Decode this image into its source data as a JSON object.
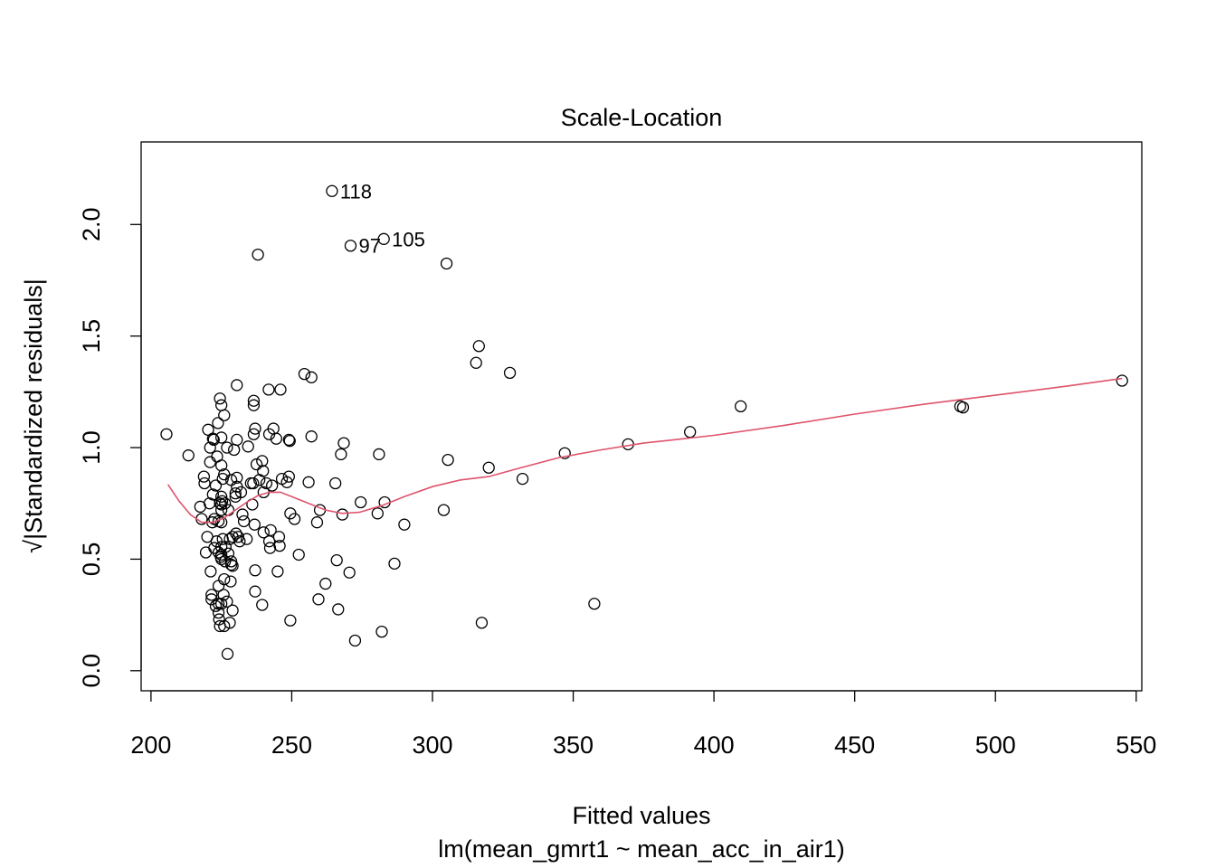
{
  "chart_data": {
    "type": "scatter",
    "title": "Scale-Location",
    "xlabel": "Fitted values",
    "subtitle": "lm(mean_gmrt1 ~ mean_acc_in_air1)",
    "ylabel": "√|Standardized residuals|",
    "xlim": [
      196.5,
      552
    ],
    "ylim": [
      -0.09,
      2.37
    ],
    "x_ticks": [
      200,
      250,
      300,
      350,
      400,
      450,
      500,
      550
    ],
    "x_tick_labels": [
      "200",
      "250",
      "300",
      "350",
      "400",
      "450",
      "500",
      "550"
    ],
    "y_ticks": [
      0.0,
      0.5,
      1.0,
      1.5,
      2.0
    ],
    "y_tick_labels": [
      "0.0",
      "0.5",
      "1.0",
      "1.5",
      "2.0"
    ],
    "grid": false,
    "point_color": "#000000",
    "smoother_color": "#DF536B",
    "labeled_points": [
      {
        "label": "118",
        "x": 264.3,
        "y": 2.15
      },
      {
        "label": "97",
        "x": 270.9,
        "y": 1.905
      },
      {
        "label": "105",
        "x": 282.7,
        "y": 1.935
      }
    ],
    "points": [
      [
        205.5,
        1.06
      ],
      [
        213.3,
        0.965
      ],
      [
        217.5,
        0.735
      ],
      [
        218.0,
        0.68
      ],
      [
        218.8,
        0.87
      ],
      [
        219.0,
        0.84
      ],
      [
        219.5,
        0.53
      ],
      [
        220.0,
        0.6
      ],
      [
        220.3,
        1.08
      ],
      [
        220.8,
        0.75
      ],
      [
        221.0,
        0.935
      ],
      [
        221.0,
        1.0
      ],
      [
        221.2,
        0.445
      ],
      [
        221.5,
        0.34
      ],
      [
        221.5,
        0.32
      ],
      [
        221.8,
        0.665
      ],
      [
        222.0,
        0.79
      ],
      [
        222.0,
        1.04
      ],
      [
        222.3,
        1.035
      ],
      [
        222.5,
        0.55
      ],
      [
        222.5,
        0.68
      ],
      [
        223.0,
        0.29
      ],
      [
        223.0,
        0.83
      ],
      [
        223.3,
        0.58
      ],
      [
        223.5,
        0.96
      ],
      [
        223.8,
        1.11
      ],
      [
        224.0,
        0.38
      ],
      [
        224.0,
        0.3
      ],
      [
        224.0,
        0.67
      ],
      [
        224.0,
        0.53
      ],
      [
        224.0,
        0.26
      ],
      [
        224.2,
        0.23
      ],
      [
        224.5,
        1.22
      ],
      [
        224.5,
        0.2
      ],
      [
        224.5,
        0.75
      ],
      [
        224.8,
        0.51
      ],
      [
        225.0,
        1.19
      ],
      [
        225.0,
        1.045
      ],
      [
        225.0,
        0.92
      ],
      [
        225.0,
        0.78
      ],
      [
        225.0,
        0.745
      ],
      [
        225.0,
        0.72
      ],
      [
        225.0,
        0.665
      ],
      [
        225.0,
        0.555
      ],
      [
        225.0,
        0.52
      ],
      [
        225.0,
        0.5
      ],
      [
        225.0,
        0.3
      ],
      [
        225.3,
        0.76
      ],
      [
        225.5,
        0.59
      ],
      [
        225.5,
        0.86
      ],
      [
        225.8,
        0.34
      ],
      [
        226.0,
        0.88
      ],
      [
        226.0,
        1.145
      ],
      [
        226.0,
        0.41
      ],
      [
        226.0,
        0.2
      ],
      [
        226.3,
        0.75
      ],
      [
        226.3,
        0.49
      ],
      [
        226.5,
        0.555
      ],
      [
        227.0,
        0.31
      ],
      [
        227.0,
        1.0
      ],
      [
        227.2,
        0.075
      ],
      [
        227.5,
        0.72
      ],
      [
        227.5,
        0.525
      ],
      [
        228.0,
        0.215
      ],
      [
        228.0,
        0.59
      ],
      [
        228.3,
        0.4
      ],
      [
        228.5,
        0.475
      ],
      [
        228.5,
        0.49
      ],
      [
        228.5,
        0.855
      ],
      [
        229.0,
        0.6
      ],
      [
        229.0,
        0.47
      ],
      [
        229.0,
        0.27
      ],
      [
        229.5,
        0.99
      ],
      [
        230.0,
        0.795
      ],
      [
        230.0,
        0.78
      ],
      [
        230.2,
        0.615
      ],
      [
        230.5,
        1.28
      ],
      [
        230.5,
        1.035
      ],
      [
        230.5,
        0.865
      ],
      [
        230.5,
        0.825
      ],
      [
        231.0,
        0.6
      ],
      [
        231.5,
        0.58
      ],
      [
        232.0,
        0.8
      ],
      [
        232.5,
        0.7
      ],
      [
        233.0,
        0.67
      ],
      [
        234.0,
        0.59
      ],
      [
        234.5,
        1.005
      ],
      [
        235.5,
        0.84
      ],
      [
        236.0,
        0.745
      ],
      [
        236.3,
        0.84
      ],
      [
        236.5,
        1.19
      ],
      [
        236.5,
        1.21
      ],
      [
        236.5,
        1.06
      ],
      [
        236.8,
        0.655
      ],
      [
        237.0,
        0.45
      ],
      [
        237.0,
        1.085
      ],
      [
        237.0,
        0.355
      ],
      [
        237.5,
        0.925
      ],
      [
        238.0,
        1.865
      ],
      [
        238.5,
        0.855
      ],
      [
        239.5,
        0.295
      ],
      [
        239.5,
        0.94
      ],
      [
        239.8,
        0.895
      ],
      [
        240.0,
        0.62
      ],
      [
        240.0,
        0.8
      ],
      [
        241.0,
        0.84
      ],
      [
        241.8,
        1.26
      ],
      [
        242.0,
        1.06
      ],
      [
        242.0,
        0.58
      ],
      [
        242.3,
        0.55
      ],
      [
        242.5,
        0.63
      ],
      [
        243.0,
        0.83
      ],
      [
        243.5,
        1.085
      ],
      [
        244.5,
        1.04
      ],
      [
        245.0,
        0.445
      ],
      [
        245.5,
        0.6
      ],
      [
        245.7,
        0.56
      ],
      [
        246.0,
        1.26
      ],
      [
        246.5,
        0.86
      ],
      [
        248.3,
        0.845
      ],
      [
        249.0,
        1.035
      ],
      [
        249.0,
        0.87
      ],
      [
        249.3,
        1.03
      ],
      [
        249.5,
        0.705
      ],
      [
        249.5,
        0.225
      ],
      [
        251.0,
        0.68
      ],
      [
        252.5,
        0.52
      ],
      [
        254.5,
        1.33
      ],
      [
        256.0,
        0.845
      ],
      [
        257.0,
        1.315
      ],
      [
        257.0,
        1.05
      ],
      [
        259.0,
        0.665
      ],
      [
        259.5,
        0.32
      ],
      [
        260.0,
        0.72
      ],
      [
        262.0,
        0.39
      ],
      [
        265.5,
        0.84
      ],
      [
        266.0,
        0.495
      ],
      [
        266.5,
        0.275
      ],
      [
        267.5,
        0.97
      ],
      [
        268.0,
        0.7
      ],
      [
        268.5,
        1.02
      ],
      [
        270.5,
        0.44
      ],
      [
        272.5,
        0.135
      ],
      [
        274.5,
        0.755
      ],
      [
        280.5,
        0.705
      ],
      [
        281.0,
        0.97
      ],
      [
        282.0,
        0.175
      ],
      [
        283.0,
        0.755
      ],
      [
        286.5,
        0.48
      ],
      [
        290.0,
        0.655
      ],
      [
        304.0,
        0.72
      ],
      [
        305.0,
        1.825
      ],
      [
        305.5,
        0.945
      ],
      [
        315.5,
        1.38
      ],
      [
        316.5,
        1.455
      ],
      [
        317.5,
        0.215
      ],
      [
        320.0,
        0.91
      ],
      [
        327.5,
        1.335
      ],
      [
        332.0,
        0.86
      ],
      [
        347.0,
        0.975
      ],
      [
        357.5,
        0.3
      ],
      [
        369.5,
        1.015
      ],
      [
        391.5,
        1.07
      ],
      [
        409.5,
        1.185
      ],
      [
        487.5,
        1.185
      ],
      [
        488.5,
        1.18
      ],
      [
        545.0,
        1.3
      ]
    ],
    "smoother": [
      [
        206,
        0.835
      ],
      [
        210,
        0.76
      ],
      [
        214,
        0.7
      ],
      [
        218,
        0.665
      ],
      [
        222,
        0.665
      ],
      [
        226,
        0.685
      ],
      [
        230,
        0.72
      ],
      [
        234,
        0.755
      ],
      [
        238,
        0.785
      ],
      [
        242,
        0.8
      ],
      [
        246,
        0.8
      ],
      [
        250,
        0.78
      ],
      [
        256,
        0.75
      ],
      [
        262,
        0.72
      ],
      [
        268,
        0.705
      ],
      [
        274,
        0.71
      ],
      [
        282,
        0.74
      ],
      [
        290,
        0.78
      ],
      [
        300,
        0.825
      ],
      [
        310,
        0.855
      ],
      [
        320,
        0.87
      ],
      [
        330,
        0.905
      ],
      [
        345,
        0.955
      ],
      [
        360,
        0.99
      ],
      [
        375,
        1.02
      ],
      [
        400,
        1.055
      ],
      [
        425,
        1.1
      ],
      [
        450,
        1.15
      ],
      [
        475,
        1.195
      ],
      [
        500,
        1.235
      ],
      [
        525,
        1.275
      ],
      [
        545,
        1.31
      ]
    ]
  }
}
